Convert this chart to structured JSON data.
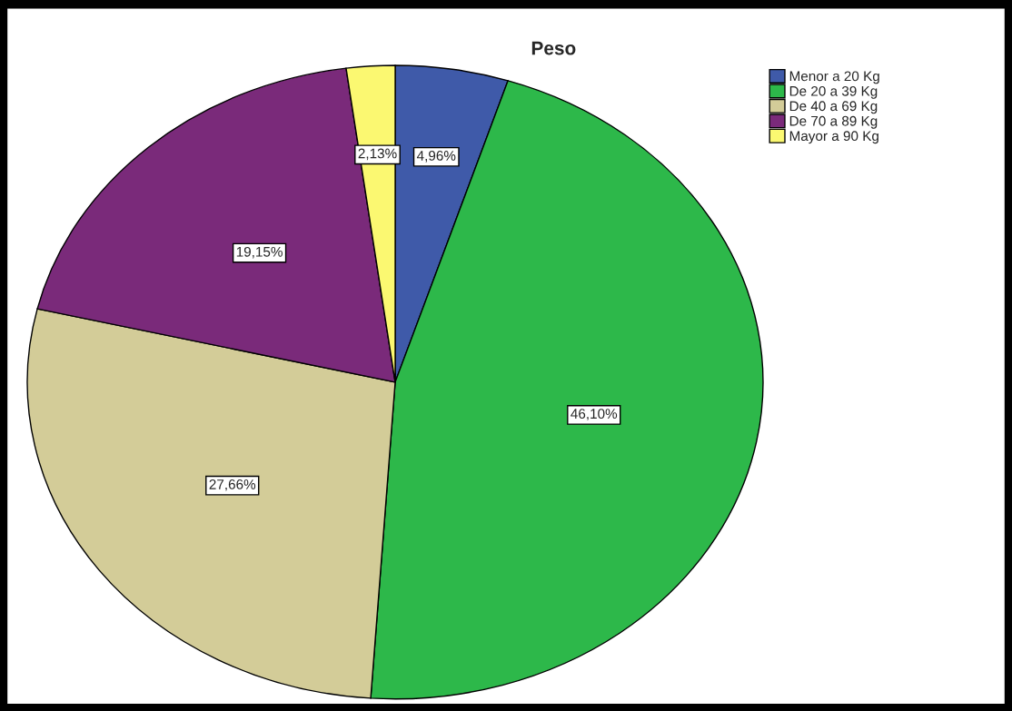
{
  "chart_data": {
    "type": "pie",
    "title": "Peso",
    "categories": [
      "Menor a 20 Kg",
      "De 20 a 39 Kg",
      "De 40 a 69 Kg",
      "De 70 a 89 Kg",
      "Mayor a 90 Kg"
    ],
    "values": [
      4.96,
      46.1,
      27.66,
      19.15,
      2.13
    ],
    "colors": [
      "#3f5aa9",
      "#2db84a",
      "#d3cc98",
      "#7a2a7a",
      "#fbf871"
    ],
    "value_labels": [
      "4,96%",
      "46,10%",
      "27,66%",
      "19,15%",
      "2,13%"
    ],
    "legend": "top right"
  }
}
